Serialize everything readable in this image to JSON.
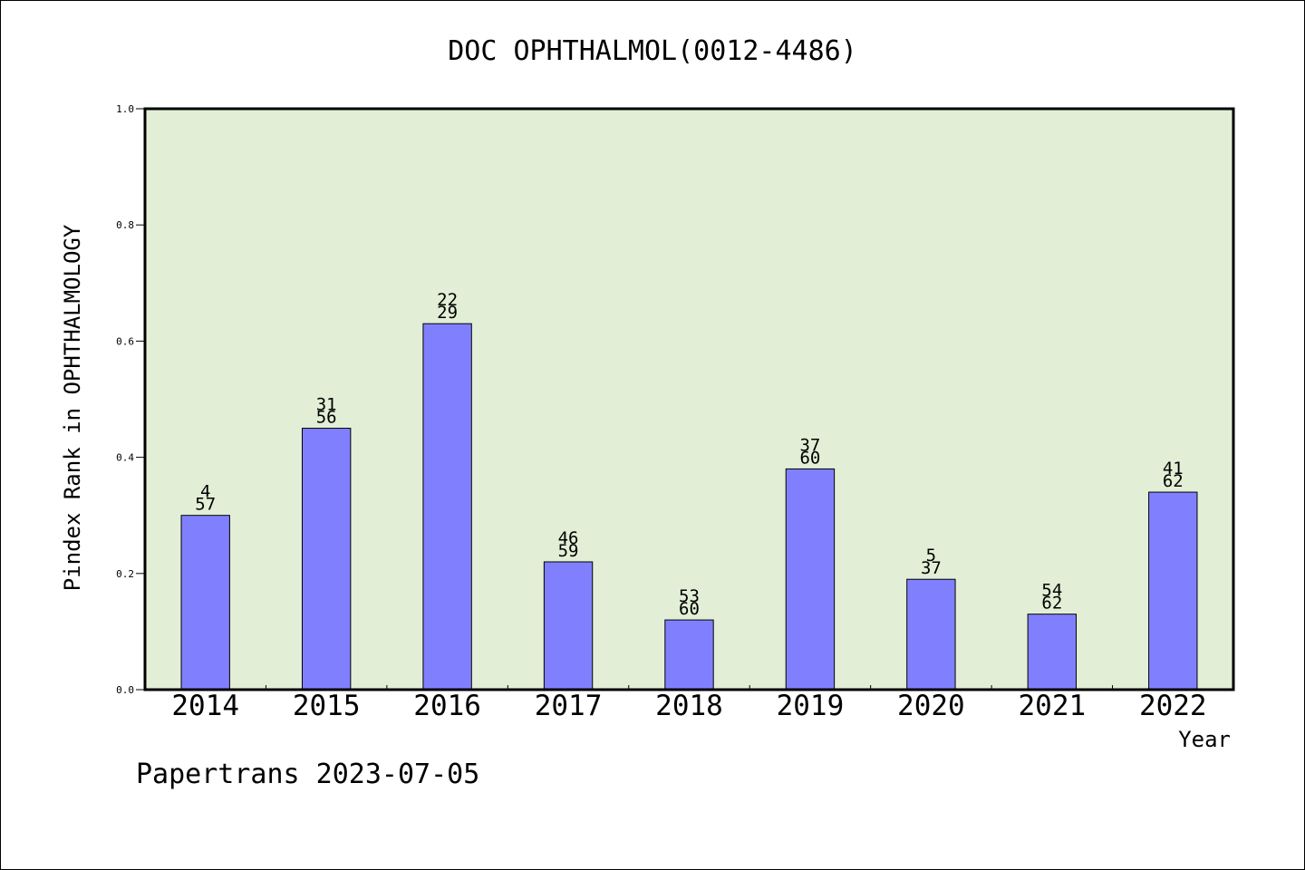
{
  "chart_data": {
    "type": "bar",
    "title": "DOC OPHTHALMOL(0012-4486)",
    "xlabel": "Year",
    "ylabel": "Pindex Rank in OPHTHALMOLOGY",
    "ylim": [
      0,
      1.0
    ],
    "yticks": [
      "0.0",
      "0.2",
      "0.4",
      "0.6",
      "0.8",
      "1.0"
    ],
    "yticks_values": [
      0,
      0.2,
      0.4,
      0.6,
      0.8,
      1.0
    ],
    "categories": [
      "2014",
      "2015",
      "2016",
      "2017",
      "2018",
      "2019",
      "2020",
      "2021",
      "2022"
    ],
    "values": [
      0.3,
      0.45,
      0.63,
      0.22,
      0.12,
      0.38,
      0.19,
      0.13,
      0.34
    ],
    "label_top": [
      "4",
      "31",
      "22",
      "46",
      "53",
      "37",
      "5",
      "54",
      "41"
    ],
    "label_bottom": [
      "57",
      "56",
      "29",
      "59",
      "60",
      "60",
      "37",
      "62",
      "62"
    ],
    "grid": false,
    "legend": "none",
    "colors": {
      "plot_background": "#e2efd6",
      "bar_fill": "#8080ff",
      "bar_stroke": "#000000"
    }
  },
  "footer": "Papertrans 2023-07-05"
}
